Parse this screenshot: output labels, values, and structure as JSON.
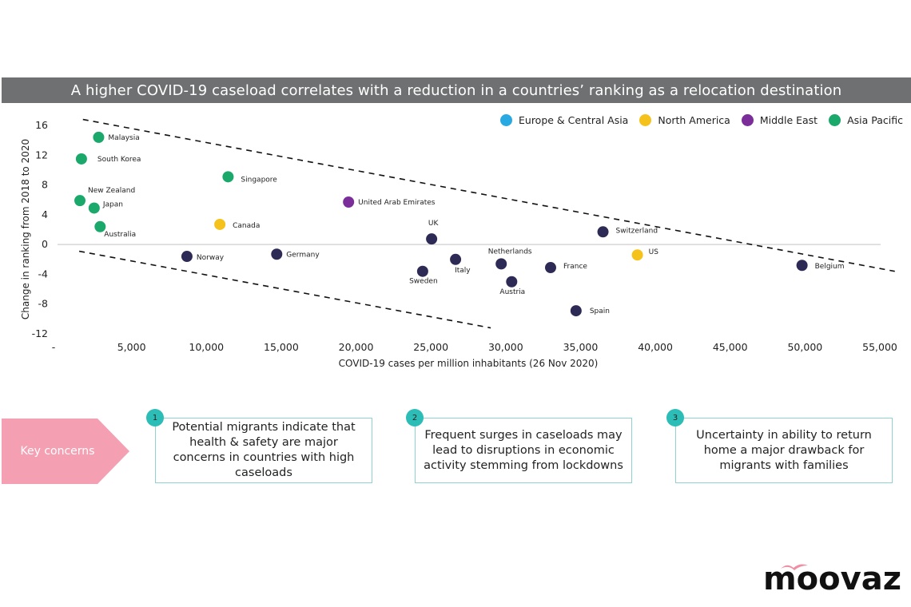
{
  "header": {
    "title": "A higher COVID-19 caseload correlates with a reduction in a countries’ ranking as a relocation destination"
  },
  "legend": [
    {
      "label": "Europe & Central Asia",
      "color": "#29a9e1"
    },
    {
      "label": "North America",
      "color": "#f5c21b"
    },
    {
      "label": "Middle East",
      "color": "#7b2d9a"
    },
    {
      "label": "Asia Pacific",
      "color": "#1aa86b"
    }
  ],
  "chart_data": {
    "type": "scatter",
    "title": "A higher COVID-19 caseload correlates with a reduction in a countries’ ranking as a relocation destination",
    "xlabel": "COVID-19 cases per million inhabitants (26 Nov 2020)",
    "ylabel": "Change in ranking from 2018 to 2020",
    "xlim": [
      0,
      55000
    ],
    "ylim": [
      -12,
      16
    ],
    "x_ticks": [
      {
        "value": 0,
        "label": "-"
      },
      {
        "value": 5000,
        "label": "5,000"
      },
      {
        "value": 10000,
        "label": "10,000"
      },
      {
        "value": 15000,
        "label": "15,000"
      },
      {
        "value": 20000,
        "label": "20,000"
      },
      {
        "value": 25000,
        "label": "25,000"
      },
      {
        "value": 30000,
        "label": "30,000"
      },
      {
        "value": 35000,
        "label": "35,000"
      },
      {
        "value": 40000,
        "label": "40,000"
      },
      {
        "value": 45000,
        "label": "45,000"
      },
      {
        "value": 50000,
        "label": "50,000"
      },
      {
        "value": 55000,
        "label": "55,000"
      }
    ],
    "y_ticks": [
      {
        "value": 16,
        "label": "16"
      },
      {
        "value": 12,
        "label": "12"
      },
      {
        "value": 8,
        "label": "8"
      },
      {
        "value": 4,
        "label": "4"
      },
      {
        "value": 0,
        "label": "0"
      },
      {
        "value": -4,
        "label": "-4"
      },
      {
        "value": -8,
        "label": "-8"
      },
      {
        "value": -12,
        "label": "-12"
      }
    ],
    "zero_line": true,
    "legend_position": "top-right",
    "series_colors": {
      "Europe & Central Asia": "#29a9e1",
      "North America": "#f5c21b",
      "Middle East": "#7b2d9a",
      "Asia Pacific": "#1aa86b",
      "Europe (plotted)": "#2d2b55"
    },
    "points": [
      {
        "label": "Malaysia",
        "x": 2800,
        "y": 14.4,
        "region": "Asia Pacific",
        "color": "#1aa86b",
        "label_pos": "right"
      },
      {
        "label": "South Korea",
        "x": 1650,
        "y": 11.5,
        "region": "Asia Pacific",
        "color": "#1aa86b",
        "label_pos": "right-far"
      },
      {
        "label": "New Zealand",
        "x": 1550,
        "y": 5.9,
        "region": "Asia Pacific",
        "color": "#1aa86b",
        "label_pos": "above-right"
      },
      {
        "label": "Japan",
        "x": 2500,
        "y": 4.9,
        "region": "Asia Pacific",
        "color": "#1aa86b",
        "label_pos": "right-up"
      },
      {
        "label": "Australia",
        "x": 2900,
        "y": 2.4,
        "region": "Asia Pacific",
        "color": "#1aa86b",
        "label_pos": "below-right"
      },
      {
        "label": "Singapore",
        "x": 11450,
        "y": 9.1,
        "region": "Asia Pacific",
        "color": "#1aa86b",
        "label_pos": "right"
      },
      {
        "label": "Canada",
        "x": 10900,
        "y": 2.7,
        "region": "North America",
        "color": "#f5c21b",
        "label_pos": "right"
      },
      {
        "label": "Norway",
        "x": 8700,
        "y": -1.6,
        "region": "Europe & Central Asia",
        "color": "#2d2b55",
        "label_pos": "right"
      },
      {
        "label": "Germany",
        "x": 14700,
        "y": -1.3,
        "region": "Europe & Central Asia",
        "color": "#2d2b55",
        "label_pos": "right"
      },
      {
        "label": "United Arab Emirates",
        "x": 19500,
        "y": 5.7,
        "region": "Middle East",
        "color": "#7b2d9a",
        "label_pos": "right"
      },
      {
        "label": "UK",
        "x": 25050,
        "y": 0.75,
        "region": "Europe & Central Asia",
        "color": "#2d2b55",
        "label_pos": "above"
      },
      {
        "label": "Sweden",
        "x": 24450,
        "y": -3.6,
        "region": "Europe & Central Asia",
        "color": "#2d2b55",
        "label_pos": "below"
      },
      {
        "label": "Italy",
        "x": 26650,
        "y": -2.0,
        "region": "Europe & Central Asia",
        "color": "#2d2b55",
        "label_pos": "below-right"
      },
      {
        "label": "Netherlands",
        "x": 29700,
        "y": -2.6,
        "region": "Europe & Central Asia",
        "color": "#2d2b55",
        "label_pos": "above"
      },
      {
        "label": "Austria",
        "x": 30400,
        "y": -5.0,
        "region": "Europe & Central Asia",
        "color": "#2d2b55",
        "label_pos": "below"
      },
      {
        "label": "France",
        "x": 33000,
        "y": -3.1,
        "region": "Europe & Central Asia",
        "color": "#2d2b55",
        "label_pos": "right"
      },
      {
        "label": "Spain",
        "x": 34700,
        "y": -8.9,
        "region": "Europe & Central Asia",
        "color": "#2d2b55",
        "label_pos": "right"
      },
      {
        "label": "Switzerland",
        "x": 36500,
        "y": 1.7,
        "region": "Europe & Central Asia",
        "color": "#2d2b55",
        "label_pos": "right"
      },
      {
        "label": "US",
        "x": 38800,
        "y": -1.4,
        "region": "North America",
        "color": "#f5c21b",
        "label_pos": "right-up"
      },
      {
        "label": "Belgium",
        "x": 49800,
        "y": -2.8,
        "region": "Europe & Central Asia",
        "color": "#2d2b55",
        "label_pos": "right"
      }
    ],
    "trend_lines": [
      {
        "name": "upper-bound",
        "style": "dashed",
        "from": {
          "x": 1750,
          "y": 16.8
        },
        "to": {
          "x": 56000,
          "y": -3.6
        }
      },
      {
        "name": "lower-bound",
        "style": "dashed",
        "from": {
          "x": 1500,
          "y": -0.9
        },
        "to": {
          "x": 29000,
          "y": -11.2
        }
      }
    ]
  },
  "key_concerns": {
    "label": "Key concerns",
    "items": [
      {
        "number": "1",
        "text": "Potential migrants indicate that health & safety are major concerns in countries with high caseloads"
      },
      {
        "number": "2",
        "text": "Frequent surges in caseloads may lead to disruptions in economic activity stemming from lockdowns"
      },
      {
        "number": "3",
        "text": "Uncertainty in ability to return home a major drawback for migrants with families"
      }
    ]
  },
  "brand": {
    "logo_text": "moovaz",
    "accent_color": "#f08fa3",
    "teal_color": "#2bbdb6"
  }
}
